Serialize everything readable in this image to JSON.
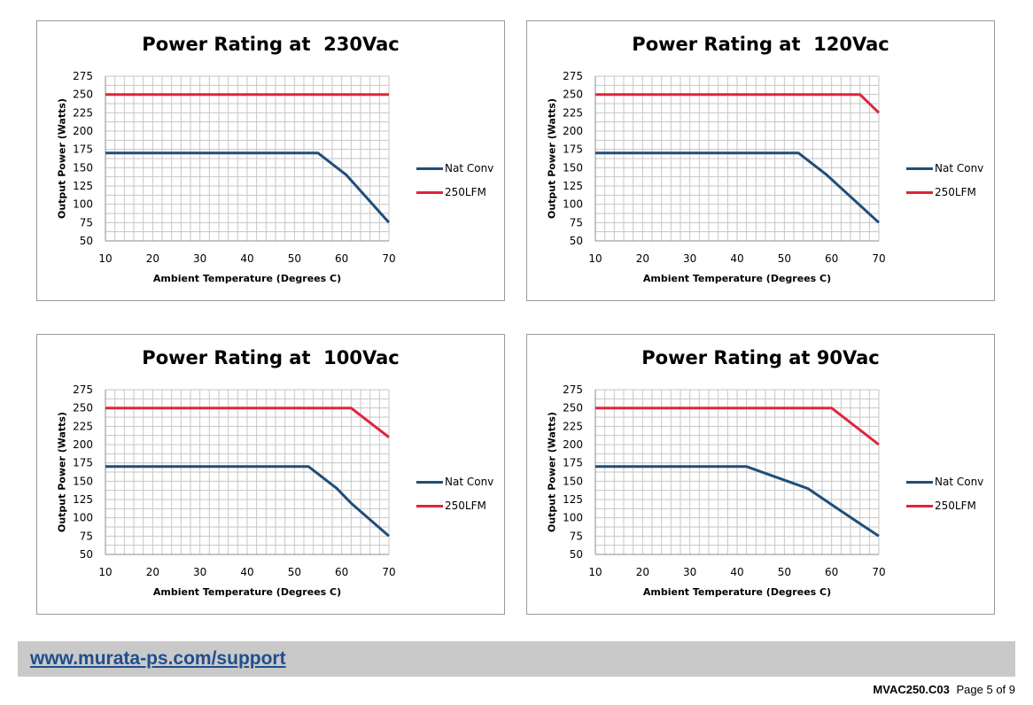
{
  "chart_data": [
    {
      "type": "line",
      "title": "Power Rating at  230Vac",
      "xlabel": "Ambient Temperature (Degrees C)",
      "ylabel": "Output Power (Watts)",
      "xlim": [
        10,
        70
      ],
      "ylim": [
        50,
        275
      ],
      "xticks": [
        10,
        20,
        30,
        40,
        50,
        60,
        70
      ],
      "yticks": [
        50,
        75,
        100,
        125,
        150,
        175,
        200,
        225,
        250,
        275
      ],
      "grid": true,
      "legend": "right",
      "series": [
        {
          "name": "Nat Conv",
          "color": "#1f4e79",
          "points": [
            [
              10,
              170
            ],
            [
              55,
              170
            ],
            [
              61,
              140
            ],
            [
              70,
              75
            ]
          ]
        },
        {
          "name": "250LFM",
          "color": "#e0243a",
          "points": [
            [
              10,
              250
            ],
            [
              70,
              250
            ]
          ]
        }
      ]
    },
    {
      "type": "line",
      "title": "Power Rating at  120Vac",
      "xlabel": "Ambient Temperature (Degrees C)",
      "ylabel": "Output Power (Watts)",
      "xlim": [
        10,
        70
      ],
      "ylim": [
        50,
        275
      ],
      "xticks": [
        10,
        20,
        30,
        40,
        50,
        60,
        70
      ],
      "yticks": [
        50,
        75,
        100,
        125,
        150,
        175,
        200,
        225,
        250,
        275
      ],
      "grid": true,
      "legend": "right",
      "series": [
        {
          "name": "Nat Conv",
          "color": "#1f4e79",
          "points": [
            [
              10,
              170
            ],
            [
              53,
              170
            ],
            [
              59,
              140
            ],
            [
              70,
              75
            ]
          ]
        },
        {
          "name": "250LFM",
          "color": "#e0243a",
          "points": [
            [
              10,
              250
            ],
            [
              66,
              250
            ],
            [
              70,
              225
            ]
          ]
        }
      ]
    },
    {
      "type": "line",
      "title": "Power Rating at  100Vac",
      "xlabel": "Ambient Temperature (Degrees C)",
      "ylabel": "Output Power (Watts)",
      "xlim": [
        10,
        70
      ],
      "ylim": [
        50,
        275
      ],
      "xticks": [
        10,
        20,
        30,
        40,
        50,
        60,
        70
      ],
      "yticks": [
        50,
        75,
        100,
        125,
        150,
        175,
        200,
        225,
        250,
        275
      ],
      "grid": true,
      "legend": "right",
      "series": [
        {
          "name": "Nat Conv",
          "color": "#1f4e79",
          "points": [
            [
              10,
              170
            ],
            [
              53,
              170
            ],
            [
              59,
              140
            ],
            [
              62,
              120
            ],
            [
              70,
              75
            ]
          ]
        },
        {
          "name": "250LFM",
          "color": "#e0243a",
          "points": [
            [
              10,
              250
            ],
            [
              62,
              250
            ],
            [
              70,
              210
            ]
          ]
        }
      ]
    },
    {
      "type": "line",
      "title": "Power Rating at 90Vac",
      "xlabel": "Ambient Temperature (Degrees C)",
      "ylabel": "Output Power (Watts)",
      "xlim": [
        10,
        70
      ],
      "ylim": [
        50,
        275
      ],
      "xticks": [
        10,
        20,
        30,
        40,
        50,
        60,
        70
      ],
      "yticks": [
        50,
        75,
        100,
        125,
        150,
        175,
        200,
        225,
        250,
        275
      ],
      "grid": true,
      "legend": "right",
      "series": [
        {
          "name": "Nat Conv",
          "color": "#1f4e79",
          "points": [
            [
              10,
              170
            ],
            [
              42,
              170
            ],
            [
              55,
              140
            ],
            [
              60,
              118
            ],
            [
              66,
              92
            ],
            [
              70,
              75
            ]
          ]
        },
        {
          "name": "250LFM",
          "color": "#e0243a",
          "points": [
            [
              10,
              250
            ],
            [
              60,
              250
            ],
            [
              70,
              200
            ]
          ]
        }
      ]
    }
  ],
  "footer": {
    "link_text": "www.murata-ps.com/support",
    "doc_id": "MVAC250.C03",
    "page": "Page 5 of 9"
  }
}
